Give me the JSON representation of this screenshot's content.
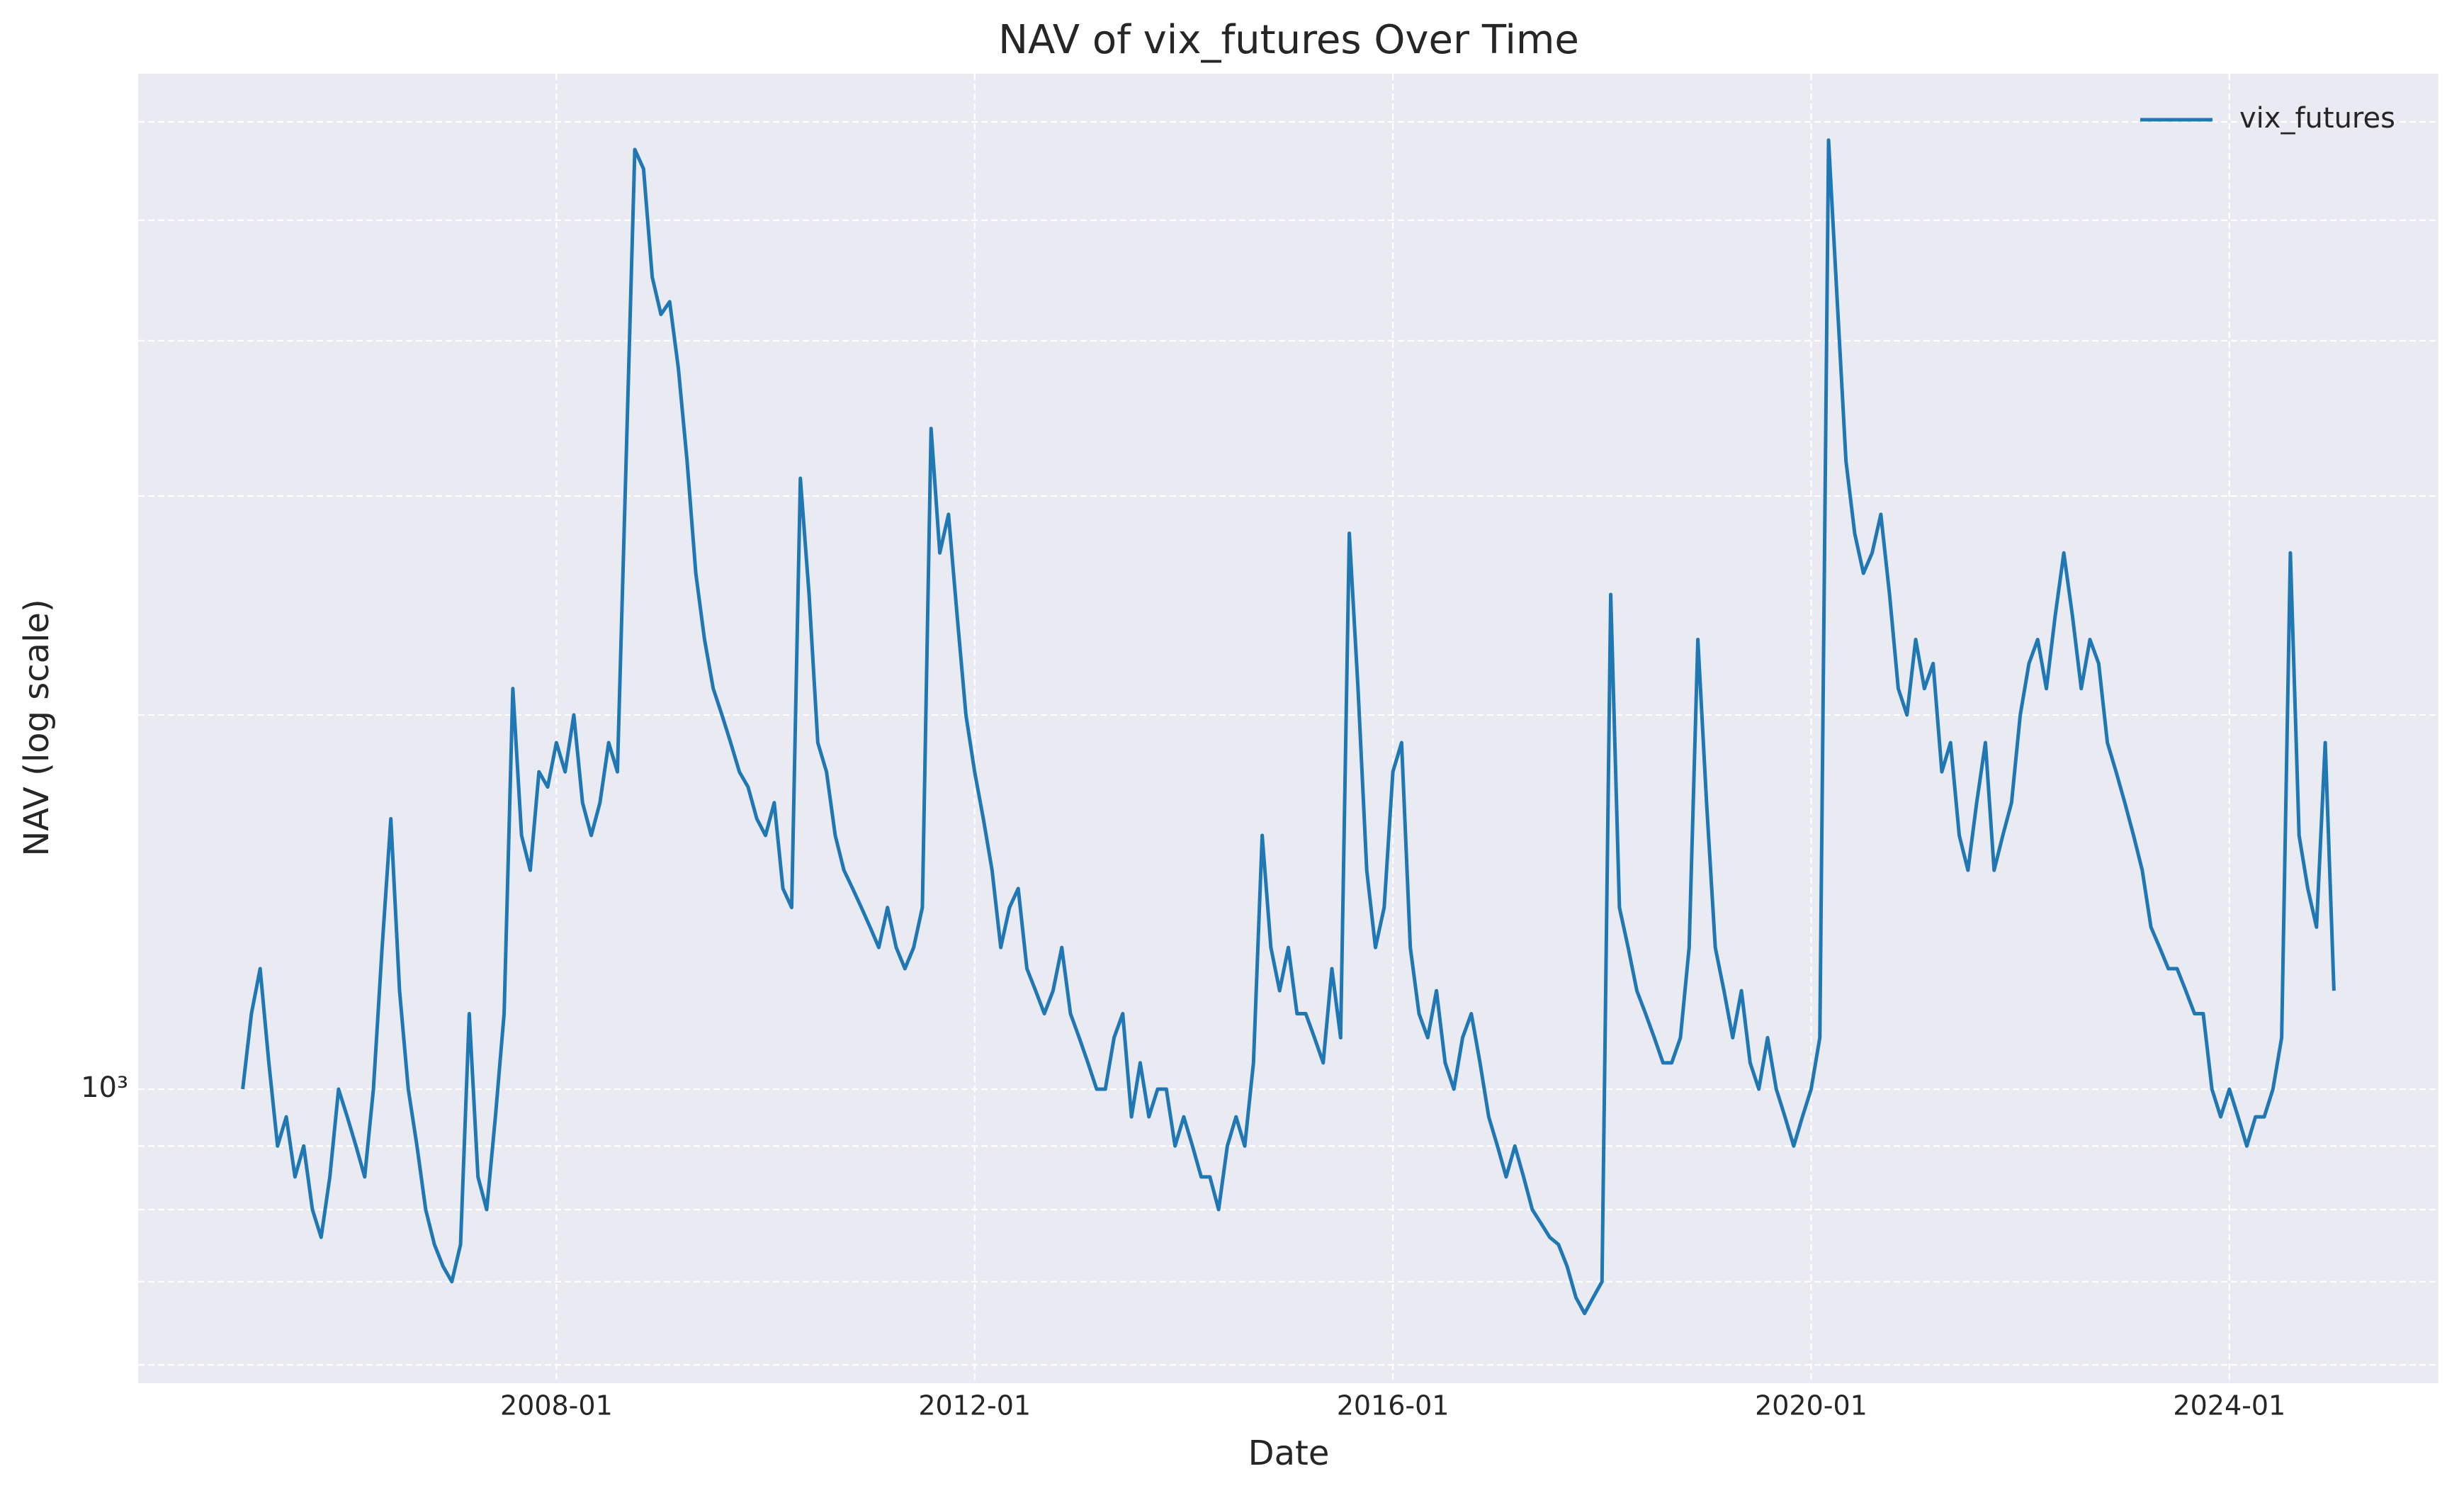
{
  "chart_data": {
    "type": "line",
    "title": "NAV of vix_futures Over Time",
    "x_label": "Date",
    "y_label": "NAV (log scale)",
    "yscale": "log",
    "grid": true,
    "legend": "upper right",
    "xlim": [
      "2004-01",
      "2026-01"
    ],
    "xticks": [
      "2008-01",
      "2012-01",
      "2016-01",
      "2020-01",
      "2024-01"
    ],
    "ylim": [
      580,
      6560
    ],
    "yticks": [
      {
        "value": 1000,
        "label": "10³"
      }
    ],
    "minor_yticks": [
      600,
      700,
      800,
      900,
      2000,
      3000,
      4000,
      5000,
      6000
    ],
    "x": [
      "2005-01",
      "2005-02",
      "2005-03",
      "2005-04",
      "2005-05",
      "2005-06",
      "2005-07",
      "2005-08",
      "2005-09",
      "2005-10",
      "2005-11",
      "2005-12",
      "2006-01",
      "2006-02",
      "2006-03",
      "2006-04",
      "2006-05",
      "2006-06",
      "2006-07",
      "2006-08",
      "2006-09",
      "2006-10",
      "2006-11",
      "2006-12",
      "2007-01",
      "2007-02",
      "2007-03",
      "2007-04",
      "2007-05",
      "2007-06",
      "2007-07",
      "2007-08",
      "2007-09",
      "2007-10",
      "2007-11",
      "2007-12",
      "2008-01",
      "2008-02",
      "2008-03",
      "2008-04",
      "2008-05",
      "2008-06",
      "2008-07",
      "2008-08",
      "2008-09",
      "2008-10",
      "2008-11",
      "2008-12",
      "2009-01",
      "2009-02",
      "2009-03",
      "2009-04",
      "2009-05",
      "2009-06",
      "2009-07",
      "2009-08",
      "2009-09",
      "2009-10",
      "2009-11",
      "2009-12",
      "2010-01",
      "2010-02",
      "2010-03",
      "2010-04",
      "2010-05",
      "2010-06",
      "2010-07",
      "2010-08",
      "2010-09",
      "2010-10",
      "2010-11",
      "2010-12",
      "2011-01",
      "2011-02",
      "2011-03",
      "2011-04",
      "2011-05",
      "2011-06",
      "2011-07",
      "2011-08",
      "2011-09",
      "2011-10",
      "2011-11",
      "2011-12",
      "2012-01",
      "2012-02",
      "2012-03",
      "2012-04",
      "2012-05",
      "2012-06",
      "2012-07",
      "2012-08",
      "2012-09",
      "2012-10",
      "2012-11",
      "2012-12",
      "2013-01",
      "2013-02",
      "2013-03",
      "2013-04",
      "2013-05",
      "2013-06",
      "2013-07",
      "2013-08",
      "2013-09",
      "2013-10",
      "2013-11",
      "2013-12",
      "2014-01",
      "2014-02",
      "2014-03",
      "2014-04",
      "2014-05",
      "2014-06",
      "2014-07",
      "2014-08",
      "2014-09",
      "2014-10",
      "2014-11",
      "2014-12",
      "2015-01",
      "2015-02",
      "2015-03",
      "2015-04",
      "2015-05",
      "2015-06",
      "2015-07",
      "2015-08",
      "2015-09",
      "2015-10",
      "2015-11",
      "2015-12",
      "2016-01",
      "2016-02",
      "2016-03",
      "2016-04",
      "2016-05",
      "2016-06",
      "2016-07",
      "2016-08",
      "2016-09",
      "2016-10",
      "2016-11",
      "2016-12",
      "2017-01",
      "2017-02",
      "2017-03",
      "2017-04",
      "2017-05",
      "2017-06",
      "2017-07",
      "2017-08",
      "2017-09",
      "2017-10",
      "2017-11",
      "2017-12",
      "2018-01",
      "2018-02",
      "2018-03",
      "2018-04",
      "2018-05",
      "2018-06",
      "2018-07",
      "2018-08",
      "2018-09",
      "2018-10",
      "2018-11",
      "2018-12",
      "2019-01",
      "2019-02",
      "2019-03",
      "2019-04",
      "2019-05",
      "2019-06",
      "2019-07",
      "2019-08",
      "2019-09",
      "2019-10",
      "2019-11",
      "2019-12",
      "2020-01",
      "2020-02",
      "2020-03",
      "2020-04",
      "2020-05",
      "2020-06",
      "2020-07",
      "2020-08",
      "2020-09",
      "2020-10",
      "2020-11",
      "2020-12",
      "2021-01",
      "2021-02",
      "2021-03",
      "2021-04",
      "2021-05",
      "2021-06",
      "2021-07",
      "2021-08",
      "2021-09",
      "2021-10",
      "2021-11",
      "2021-12",
      "2022-01",
      "2022-02",
      "2022-03",
      "2022-04",
      "2022-05",
      "2022-06",
      "2022-07",
      "2022-08",
      "2022-09",
      "2022-10",
      "2022-11",
      "2022-12",
      "2023-01",
      "2023-02",
      "2023-03",
      "2023-04",
      "2023-05",
      "2023-06",
      "2023-07",
      "2023-08",
      "2023-09",
      "2023-10",
      "2023-11",
      "2023-12",
      "2024-01",
      "2024-02",
      "2024-03",
      "2024-04",
      "2024-05",
      "2024-06",
      "2024-07",
      "2024-08",
      "2024-09",
      "2024-10",
      "2024-11",
      "2024-12",
      "2025-01"
    ],
    "series": [
      {
        "name": "vix_futures",
        "color": "#1f77b4",
        "values": [
          1000,
          1150,
          1250,
          1050,
          900,
          950,
          850,
          900,
          800,
          760,
          850,
          1000,
          950,
          900,
          850,
          1000,
          1300,
          1650,
          1200,
          1000,
          900,
          800,
          750,
          720,
          700,
          750,
          1150,
          850,
          800,
          950,
          1150,
          2100,
          1600,
          1500,
          1800,
          1750,
          1900,
          1800,
          2000,
          1700,
          1600,
          1700,
          1900,
          1800,
          3200,
          5700,
          5500,
          4500,
          4200,
          4300,
          3800,
          3200,
          2600,
          2300,
          2100,
          2000,
          1900,
          1800,
          1750,
          1650,
          1600,
          1700,
          1450,
          1400,
          3100,
          2500,
          1900,
          1800,
          1600,
          1500,
          1450,
          1400,
          1350,
          1300,
          1400,
          1300,
          1250,
          1300,
          1400,
          3400,
          2700,
          2900,
          2400,
          2000,
          1800,
          1650,
          1500,
          1300,
          1400,
          1450,
          1250,
          1200,
          1150,
          1200,
          1300,
          1150,
          1100,
          1050,
          1000,
          1000,
          1100,
          1150,
          950,
          1050,
          950,
          1000,
          1000,
          900,
          950,
          900,
          850,
          850,
          800,
          900,
          950,
          900,
          1050,
          1600,
          1300,
          1200,
          1300,
          1150,
          1150,
          1100,
          1050,
          1250,
          1100,
          2800,
          2100,
          1500,
          1300,
          1400,
          1800,
          1900,
          1300,
          1150,
          1100,
          1200,
          1050,
          1000,
          1100,
          1150,
          1050,
          950,
          900,
          850,
          900,
          850,
          800,
          780,
          760,
          750,
          720,
          680,
          660,
          680,
          700,
          2500,
          1400,
          1300,
          1200,
          1150,
          1100,
          1050,
          1050,
          1100,
          1300,
          2300,
          1700,
          1300,
          1200,
          1100,
          1200,
          1050,
          1000,
          1100,
          1000,
          950,
          900,
          950,
          1000,
          1100,
          5800,
          4300,
          3200,
          2800,
          2600,
          2700,
          2900,
          2500,
          2100,
          2000,
          2300,
          2100,
          2200,
          1800,
          1900,
          1600,
          1500,
          1700,
          1900,
          1500,
          1600,
          1700,
          2000,
          2200,
          2300,
          2100,
          2400,
          2700,
          2400,
          2100,
          2300,
          2200,
          1900,
          1800,
          1700,
          1600,
          1500,
          1350,
          1300,
          1250,
          1250,
          1200,
          1150,
          1150,
          1000,
          950,
          1000,
          950,
          900,
          950,
          950,
          1000,
          1100,
          2700,
          1600,
          1450,
          1350,
          1900,
          1200
        ]
      }
    ]
  }
}
